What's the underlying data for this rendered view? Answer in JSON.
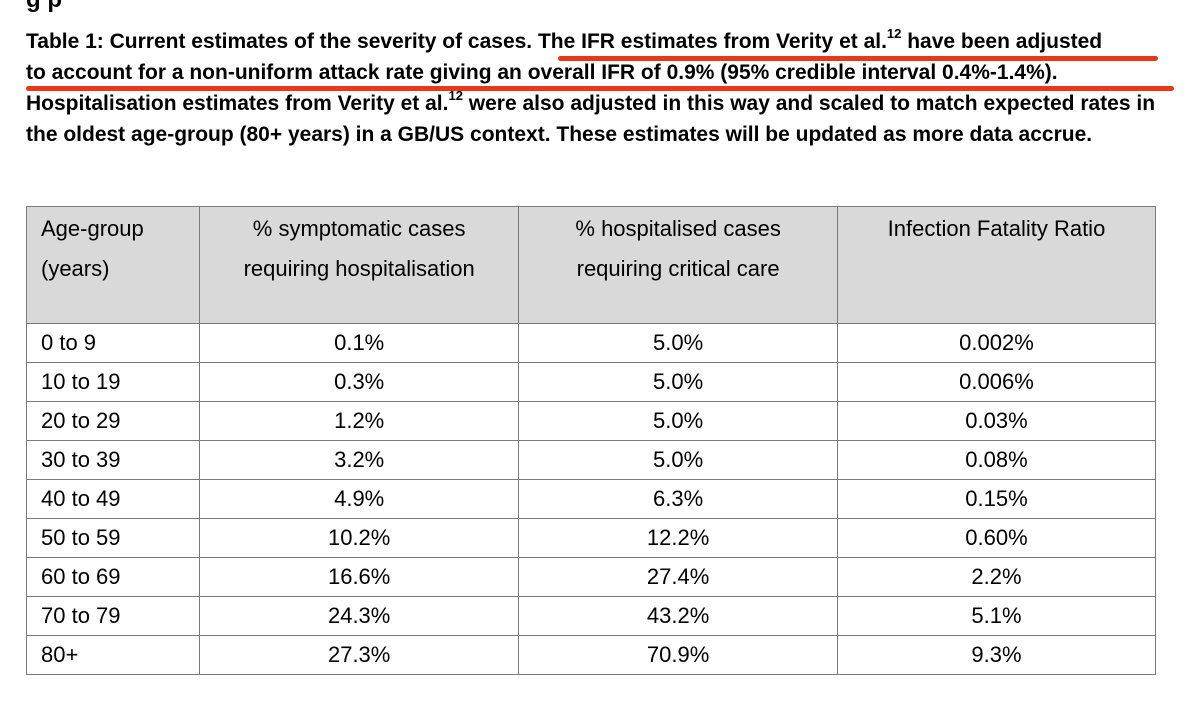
{
  "document": {
    "fragment_above": "g  p",
    "caption": {
      "lead": "Table 1: Current estimates of the severity of cases. ",
      "highlight_1": "The IFR estimates from Verity et al.",
      "ref_1": "12",
      "highlight_2": " have been adjusted",
      "line2": "to account for a non-uniform attack rate giving an overall IFR of 0.9% (95% credible interval 0.4%-1.4%).",
      "rest_a": "Hospitalisation estimates from Verity et al.",
      "ref_2": "12",
      "rest_b": " were also adjusted in this way and scaled to match expected rates in the oldest age-group (80+ years) in a GB/US context. These estimates will be updated as more data accrue."
    },
    "annotation_color": "#e8381a"
  },
  "table": {
    "headers": [
      [
        "Age-group",
        "(years)"
      ],
      [
        "% symptomatic cases",
        "requiring hospitalisation"
      ],
      [
        "% hospitalised cases",
        "requiring critical care"
      ],
      [
        "Infection Fatality Ratio",
        ""
      ]
    ],
    "rows": [
      [
        "0 to 9",
        "0.1%",
        "5.0%",
        "0.002%"
      ],
      [
        "10 to 19",
        "0.3%",
        "5.0%",
        "0.006%"
      ],
      [
        "20 to 29",
        "1.2%",
        "5.0%",
        "0.03%"
      ],
      [
        "30 to 39",
        "3.2%",
        "5.0%",
        "0.08%"
      ],
      [
        "40 to 49",
        "4.9%",
        "6.3%",
        "0.15%"
      ],
      [
        "50 to 59",
        "10.2%",
        "12.2%",
        "0.60%"
      ],
      [
        "60 to 69",
        "16.6%",
        "27.4%",
        "2.2%"
      ],
      [
        "70 to 79",
        "24.3%",
        "43.2%",
        "5.1%"
      ],
      [
        "80+",
        "27.3%",
        "70.9%",
        "9.3%"
      ]
    ]
  }
}
